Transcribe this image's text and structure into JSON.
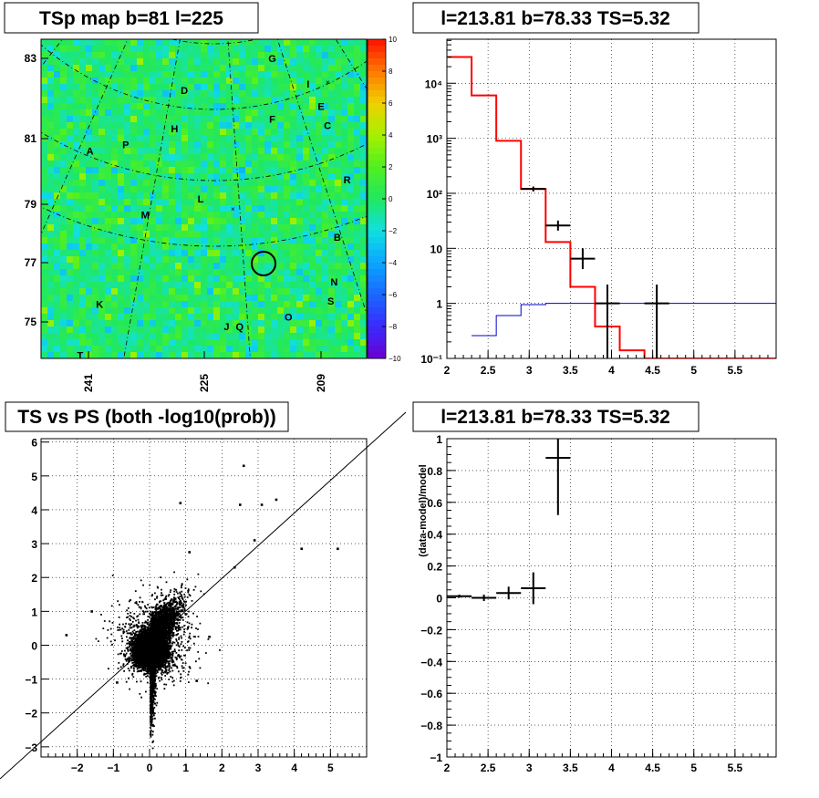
{
  "chart_data": [
    {
      "type": "heatmap",
      "title": "TSp map b=81 l=225",
      "y_ticks": [
        "83",
        "81",
        "79",
        "77",
        "75"
      ],
      "x_ticks": [
        "241",
        "225",
        "209"
      ],
      "colorbar_ticks": [
        "10",
        "8",
        "6",
        "4",
        "2",
        "0",
        "−2",
        "−4",
        "−6",
        "−8",
        "−10"
      ],
      "zlim": [
        -10,
        10
      ],
      "source_labels": [
        {
          "text": "G",
          "lx": 0.71,
          "ly": 0.06
        },
        {
          "text": "I",
          "lx": 0.82,
          "ly": 0.14
        },
        {
          "text": "D",
          "lx": 0.44,
          "ly": 0.16
        },
        {
          "text": "E",
          "lx": 0.86,
          "ly": 0.21
        },
        {
          "text": "F",
          "lx": 0.71,
          "ly": 0.25
        },
        {
          "text": "H",
          "lx": 0.41,
          "ly": 0.28
        },
        {
          "text": "C",
          "lx": 0.88,
          "ly": 0.27
        },
        {
          "text": "P",
          "lx": 0.26,
          "ly": 0.33
        },
        {
          "text": "A",
          "lx": 0.15,
          "ly": 0.35
        },
        {
          "text": "R",
          "lx": 0.94,
          "ly": 0.44
        },
        {
          "text": "L",
          "lx": 0.49,
          "ly": 0.5
        },
        {
          "text": "M",
          "lx": 0.32,
          "ly": 0.55
        },
        {
          "text": "B",
          "lx": 0.91,
          "ly": 0.62
        },
        {
          "text": "N",
          "lx": 0.9,
          "ly": 0.76
        },
        {
          "text": "K",
          "lx": 0.18,
          "ly": 0.83
        },
        {
          "text": "S",
          "lx": 0.89,
          "ly": 0.82
        },
        {
          "text": "O",
          "lx": 0.76,
          "ly": 0.87
        },
        {
          "text": "J",
          "lx": 0.57,
          "ly": 0.9
        },
        {
          "text": "Q",
          "lx": 0.61,
          "ly": 0.9
        },
        {
          "text": "T",
          "lx": 0.12,
          "ly": 0.99
        }
      ]
    },
    {
      "type": "line",
      "title": "l=213.81 b=78.33 TS=5.32",
      "xlim": [
        2,
        6
      ],
      "ylim_log10": [
        -1,
        4.8
      ],
      "yscale": "log",
      "x_ticks": [
        "2",
        "2.5",
        "3",
        "3.5",
        "4",
        "4.5",
        "5",
        "5.5"
      ],
      "y_ticks": [
        "10⁻¹",
        "1",
        "10",
        "10²",
        "10³",
        "10⁴"
      ],
      "grid": true,
      "model_red": {
        "edges": [
          2.0,
          2.3,
          2.6,
          2.9,
          3.2,
          3.5,
          3.8,
          4.1,
          4.4,
          6.0
        ],
        "values": [
          30000,
          6000,
          900,
          120,
          13,
          2,
          0.38,
          0.14,
          0.1
        ]
      },
      "model_blue": {
        "edges": [
          2.3,
          2.6,
          2.9,
          3.2,
          6.0
        ],
        "values": [
          0.26,
          0.6,
          0.95,
          1.0
        ]
      },
      "data_points": [
        {
          "x": 3.05,
          "y": 120,
          "xerr": 0.15,
          "ylo": 108,
          "yhi": 133
        },
        {
          "x": 3.35,
          "y": 26,
          "xerr": 0.15,
          "ylo": 21,
          "yhi": 32
        },
        {
          "x": 3.65,
          "y": 6.5,
          "xerr": 0.15,
          "ylo": 4.2,
          "yhi": 10
        },
        {
          "x": 3.95,
          "y": 1.0,
          "xerr": 0.15,
          "ylo": 0.1,
          "yhi": 2.2
        },
        {
          "x": 4.55,
          "y": 1.0,
          "xerr": 0.15,
          "ylo": 0.1,
          "yhi": 2.2
        }
      ]
    },
    {
      "type": "scatter",
      "title": "TS vs PS (both -log10(prob))",
      "xlim": [
        -3,
        6
      ],
      "ylim": [
        -3.3,
        6.1
      ],
      "x_ticks": [
        "−2",
        "−1",
        "0",
        "1",
        "2",
        "3",
        "4",
        "5"
      ],
      "y_ticks": [
        "−3",
        "−2",
        "−1",
        "0",
        "1",
        "2",
        "3",
        "4",
        "5",
        "6"
      ],
      "grid": true,
      "n_points": 9000,
      "outliers": [
        [
          2.6,
          5.3
        ],
        [
          5.2,
          2.85
        ],
        [
          3.5,
          4.3
        ],
        [
          3.1,
          4.15
        ],
        [
          2.5,
          4.15
        ],
        [
          0.85,
          4.2
        ],
        [
          2.35,
          2.3
        ],
        [
          2.9,
          3.1
        ],
        [
          1.1,
          2.75
        ],
        [
          -1.6,
          1.0
        ],
        [
          -2.3,
          0.3
        ],
        [
          -0.9,
          -1.1
        ],
        [
          1.65,
          0.25
        ],
        [
          4.2,
          2.85
        ],
        [
          1.3,
          -1.05
        ]
      ]
    },
    {
      "type": "line",
      "title": "l=213.81 b=78.33 TS=5.32",
      "ylabel": "(data-model)/model",
      "xlim": [
        2,
        6
      ],
      "ylim": [
        -1,
        1
      ],
      "x_ticks": [
        "2",
        "2.5",
        "3",
        "3.5",
        "4",
        "4.5",
        "5",
        "5.5"
      ],
      "y_ticks": [
        "−1",
        "−0.8",
        "−0.6",
        "−0.4",
        "−0.2",
        "0",
        "0.2",
        "0.4",
        "0.6",
        "0.8",
        "1"
      ],
      "grid": true,
      "points": [
        {
          "x": 2.15,
          "y": 0.01,
          "xerr": 0.15,
          "ylo": 0.0,
          "yhi": 0.02
        },
        {
          "x": 2.45,
          "y": 0.0,
          "xerr": 0.15,
          "ylo": -0.02,
          "yhi": 0.02
        },
        {
          "x": 2.75,
          "y": 0.03,
          "xerr": 0.15,
          "ylo": -0.01,
          "yhi": 0.07
        },
        {
          "x": 3.05,
          "y": 0.06,
          "xerr": 0.15,
          "ylo": -0.04,
          "yhi": 0.16
        },
        {
          "x": 3.35,
          "y": 0.88,
          "xerr": 0.15,
          "ylo": 0.52,
          "yhi": 1.0
        }
      ]
    }
  ]
}
